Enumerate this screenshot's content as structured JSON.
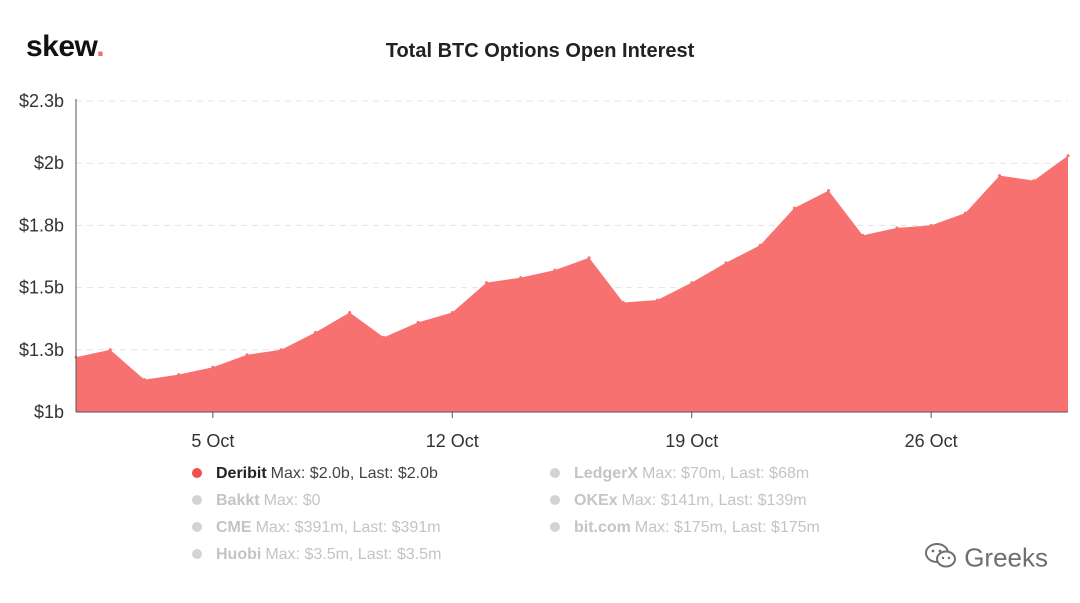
{
  "brand": {
    "logo_text": "skew",
    "logo_dot": "."
  },
  "watermark": {
    "text": "Greeks",
    "icon": "wechat-icon"
  },
  "colors": {
    "area_fill": "#f87171",
    "active_dot": "#ef4f4f",
    "inactive_dot": "#d3d3d3"
  },
  "chart_data": {
    "type": "area",
    "title": "Total BTC Options Open Interest",
    "xlabel": "",
    "ylabel": "",
    "y_ticks": [
      {
        "value": 1.0,
        "label": "$1b"
      },
      {
        "value": 1.25,
        "label": "$1.3b"
      },
      {
        "value": 1.5,
        "label": "$1.5b"
      },
      {
        "value": 1.75,
        "label": "$1.8b"
      },
      {
        "value": 2.0,
        "label": "$2b"
      },
      {
        "value": 2.25,
        "label": "$2.3b"
      }
    ],
    "ylim": [
      1.0,
      2.25
    ],
    "x_ticks": [
      {
        "day": 5,
        "label": "5 Oct"
      },
      {
        "day": 12,
        "label": "12 Oct"
      },
      {
        "day": 19,
        "label": "19 Oct"
      },
      {
        "day": 26,
        "label": "26 Oct"
      }
    ],
    "xlim": [
      1,
      30
    ],
    "grid": true,
    "legend_position": "bottom",
    "series": [
      {
        "name": "Deribit",
        "x": [
          1,
          2,
          3,
          4,
          5,
          6,
          7,
          8,
          9,
          10,
          11,
          12,
          13,
          14,
          15,
          16,
          17,
          18,
          19,
          20,
          21,
          22,
          23,
          24,
          25,
          26,
          27,
          28,
          29,
          30
        ],
        "values": [
          1.22,
          1.25,
          1.13,
          1.15,
          1.18,
          1.23,
          1.25,
          1.32,
          1.4,
          1.3,
          1.36,
          1.4,
          1.52,
          1.54,
          1.57,
          1.62,
          1.44,
          1.45,
          1.52,
          1.6,
          1.67,
          1.82,
          1.89,
          1.71,
          1.74,
          1.75,
          1.8,
          1.95,
          1.93,
          2.03
        ]
      }
    ]
  },
  "legend": {
    "left": [
      {
        "name": "Deribit",
        "stats": "Max: $2.0b, Last: $2.0b",
        "active": true
      },
      {
        "name": "Bakkt",
        "stats": "Max: $0",
        "active": false
      },
      {
        "name": "CME",
        "stats": "Max: $391m, Last: $391m",
        "active": false
      },
      {
        "name": "Huobi",
        "stats": "Max: $3.5m, Last: $3.5m",
        "active": false
      }
    ],
    "right": [
      {
        "name": "LedgerX",
        "stats": "Max: $70m, Last: $68m",
        "active": false
      },
      {
        "name": "OKEx",
        "stats": "Max: $141m, Last: $139m",
        "active": false
      },
      {
        "name": "bit.com",
        "stats": "Max: $175m, Last: $175m",
        "active": false
      }
    ]
  }
}
